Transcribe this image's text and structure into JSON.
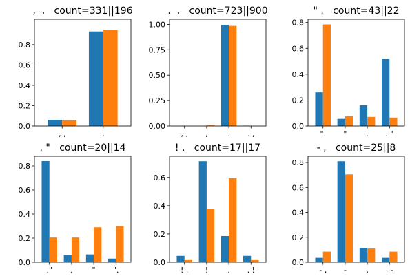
{
  "colors": {
    "series_a": "#1f77b4",
    "series_b": "#ff7f0e"
  },
  "chart_data": [
    {
      "type": "bar",
      "title": ",  ,   count=331||196",
      "categories": [
        ", ,",
        ","
      ],
      "series": [
        {
          "values": [
            0.06,
            0.93
          ]
        },
        {
          "values": [
            0.055,
            0.945
          ]
        }
      ],
      "ylim": [
        0,
        1.05
      ],
      "yticks": [
        "0.0",
        "0.2",
        "0.4",
        "0.6",
        "0.8"
      ],
      "ytick_values": [
        0,
        0.2,
        0.4,
        0.6,
        0.8
      ]
    },
    {
      "type": "bar",
      "title": ".  ,   count=723||900",
      "categories": [
        ", ,",
        ",",
        ".",
        ". ,"
      ],
      "series": [
        {
          "values": [
            0.0,
            0.0,
            0.995,
            0.003
          ]
        },
        {
          "values": [
            0.0,
            0.006,
            0.985,
            0.0
          ]
        }
      ],
      "ylim": [
        0,
        1.05
      ],
      "yticks": [
        "0.00",
        "0.25",
        "0.50",
        "0.75",
        "1.00"
      ],
      "ytick_values": [
        0,
        0.25,
        0.5,
        0.75,
        1.0
      ]
    },
    {
      "type": "bar",
      "title": "\" .   count=43||22",
      "categories": [
        "\".",
        "\"",
        ".",
        ". \""
      ],
      "series": [
        {
          "values": [
            0.26,
            0.055,
            0.16,
            0.52
          ]
        },
        {
          "values": [
            0.785,
            0.075,
            0.07,
            0.065
          ]
        }
      ],
      "ylim": [
        0,
        0.825
      ],
      "yticks": [
        "0.0",
        "0.2",
        "0.4",
        "0.6",
        "0.8"
      ],
      "ytick_values": [
        0,
        0.2,
        0.4,
        0.6,
        0.8
      ]
    },
    {
      "type": "bar",
      "title": ". \"   count=20||14",
      "categories": [
        ".\"",
        ".",
        "\"",
        "\"."
      ],
      "series": [
        {
          "values": [
            0.84,
            0.06,
            0.065,
            0.03
          ]
        },
        {
          "values": [
            0.205,
            0.205,
            0.29,
            0.3
          ]
        }
      ],
      "ylim": [
        0,
        0.88
      ],
      "yticks": [
        "0.0",
        "0.2",
        "0.4",
        "0.6",
        "0.8"
      ],
      "ytick_values": [
        0,
        0.2,
        0.4,
        0.6,
        0.8
      ]
    },
    {
      "type": "bar",
      "title": "! .   count=17||17",
      "categories": [
        "! .",
        "!",
        ".",
        ". !"
      ],
      "series": [
        {
          "values": [
            0.045,
            0.715,
            0.185,
            0.045
          ]
        },
        {
          "values": [
            0.015,
            0.375,
            0.595,
            0.015
          ]
        }
      ],
      "ylim": [
        0,
        0.75
      ],
      "yticks": [
        "0.0",
        "0.2",
        "0.4",
        "0.6"
      ],
      "ytick_values": [
        0,
        0.2,
        0.4,
        0.6
      ]
    },
    {
      "type": "bar",
      "title": "- ,   count=25||8",
      "categories": [
        "- ,",
        "-",
        ",",
        ", -"
      ],
      "series": [
        {
          "values": [
            0.035,
            0.81,
            0.115,
            0.035
          ]
        },
        {
          "values": [
            0.085,
            0.705,
            0.11,
            0.085
          ]
        }
      ],
      "ylim": [
        0,
        0.85
      ],
      "yticks": [
        "0.0",
        "0.2",
        "0.4",
        "0.6",
        "0.8"
      ],
      "ytick_values": [
        0,
        0.2,
        0.4,
        0.6,
        0.8
      ]
    }
  ]
}
